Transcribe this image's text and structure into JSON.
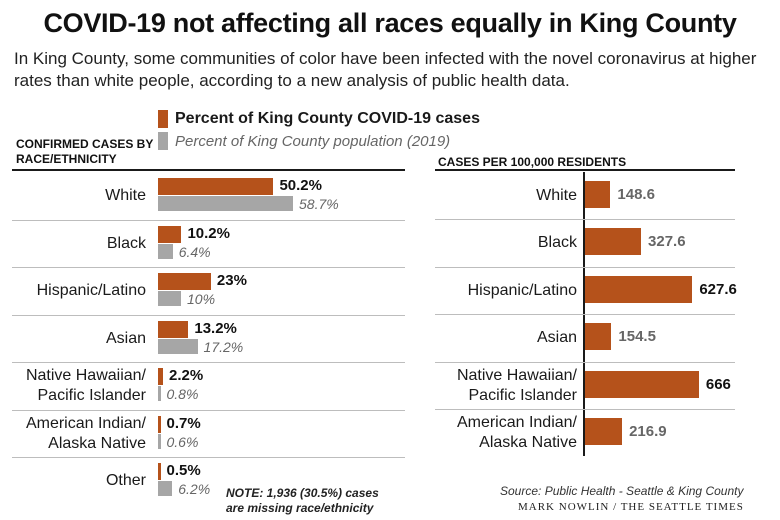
{
  "title": "COVID-19 not affecting all races equally in King County",
  "subtitle": "In King County, some communities of color have been infected with the novel coronavirus at higher rates than white people, according to a new analysis of public health data.",
  "colors": {
    "cases": "#b5521b",
    "population": "#a6a6a6",
    "rate": "#b5521b"
  },
  "legend": {
    "cases": "Percent of King County COVID-19 cases",
    "population": "Percent of King County population (2019)"
  },
  "note": "NOTE: 1,936 (30.5%) cases are missing race/ethnicity",
  "source": "Source: Public Health - Seattle & King County",
  "credit": "MARK NOWLIN / THE SEATTLE TIMES",
  "chart_data": [
    {
      "type": "bar",
      "title": "CONFIRMED CASES BY RACE/ETHNICITY",
      "categories": [
        "White",
        "Black",
        "Hispanic/Latino",
        "Asian",
        "Native Hawaiian/ Pacific Islander",
        "American Indian/ Alaska Native",
        "Other"
      ],
      "series": [
        {
          "name": "Percent of King County COVID-19 cases",
          "values": [
            50.2,
            10.2,
            23,
            13.2,
            2.2,
            0.7,
            0.5
          ],
          "labels": [
            "50.2%",
            "10.2%",
            "23%",
            "13.2%",
            "2.2%",
            "0.7%",
            "0.5%"
          ]
        },
        {
          "name": "Percent of King County population (2019)",
          "values": [
            58.7,
            6.4,
            10,
            17.2,
            0.8,
            0.6,
            6.2
          ],
          "labels": [
            "58.7%",
            "6.4%",
            "10%",
            "17.2%",
            "0.8%",
            "0.6%",
            "6.2%"
          ]
        }
      ]
    },
    {
      "type": "bar",
      "title": "CASES PER 100,000 RESIDENTS",
      "categories": [
        "White",
        "Black",
        "Hispanic/Latino",
        "Asian",
        "Native Hawaiian/ Pacific Islander",
        "American Indian/ Alaska Native"
      ],
      "values": [
        148.6,
        327.6,
        627.6,
        154.5,
        666,
        216.9
      ],
      "labels": [
        "148.6",
        "327.6",
        "627.6",
        "154.5",
        "666",
        "216.9"
      ]
    }
  ]
}
